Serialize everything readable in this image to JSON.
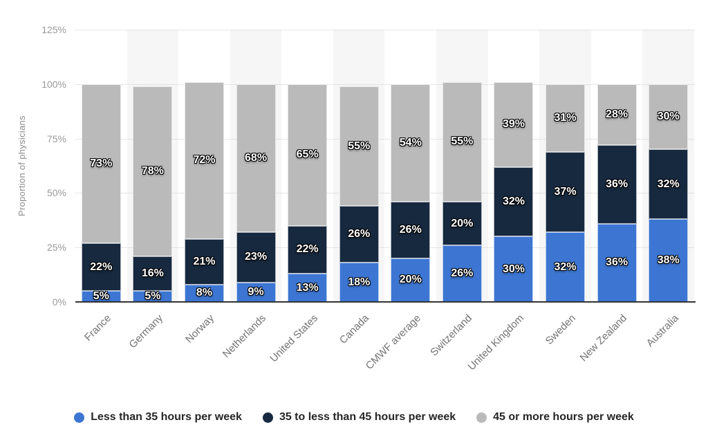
{
  "chart_data": {
    "type": "bar",
    "stacked": true,
    "title": "",
    "ylabel": "Proportion of physicians",
    "xlabel": "",
    "ylim": [
      0,
      125
    ],
    "yticks": [
      "0%",
      "25%",
      "50%",
      "75%",
      "100%",
      "125%"
    ],
    "grid": "horizontal-dotted",
    "legend_position": "bottom",
    "categories": [
      "France",
      "Germany",
      "Norway",
      "Netherlands",
      "United States",
      "Canada",
      "CMWF average",
      "Switzerland",
      "United Kingdom",
      "Sweden",
      "New Zealand",
      "Australia"
    ],
    "series": [
      {
        "name": "Less than 35 hours per week",
        "color": "#3d76d2",
        "values": [
          5,
          5,
          8,
          9,
          13,
          18,
          20,
          26,
          30,
          32,
          36,
          38
        ]
      },
      {
        "name": "35 to less than 45 hours per week",
        "color": "#17293f",
        "values": [
          22,
          16,
          21,
          23,
          22,
          26,
          26,
          20,
          32,
          37,
          36,
          32
        ]
      },
      {
        "name": "45 or more hours per week",
        "color": "#bababa",
        "values": [
          73,
          78,
          72,
          68,
          65,
          55,
          54,
          55,
          39,
          31,
          28,
          30
        ]
      }
    ],
    "data_label_suffix": "%",
    "colors": {
      "plot_band": "#f6f6f6",
      "gridline": "#cccccc",
      "axis_line": "#333333",
      "tick_label": "#999999",
      "category_label": "#737373",
      "data_label": "#ffffff",
      "legend_text": "#262626",
      "background": "#ffffff"
    }
  }
}
